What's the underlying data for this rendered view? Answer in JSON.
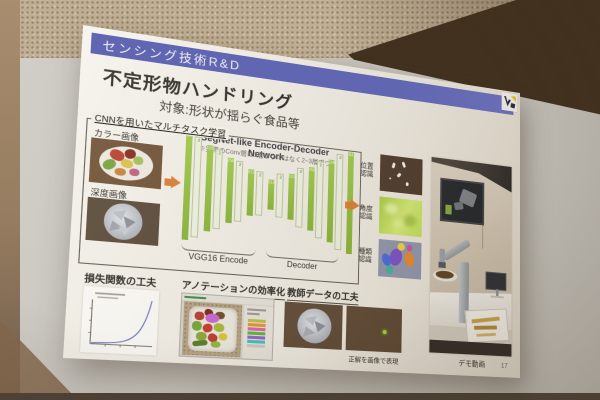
{
  "slide": {
    "title_bar": {
      "title": "センシング技術R&D"
    },
    "heading": "不定形物ハンドリング",
    "subheading": "対象:形状が揺らぐ食品等",
    "cnn_box": {
      "label": "CNNを用いたマルチタスク学習",
      "input_labels": [
        "カラー画像",
        "深度画像"
      ],
      "network": {
        "title": "SegNet-like Encoder-Decoder Network",
        "note": "※実際のConv層は1層ずつではなく2~3層ずつ",
        "encoder_label": "VGG16 Encode",
        "decoder_label": "Decoder",
        "bars": [
          {
            "kind": "conv",
            "label": "64",
            "h": 104
          },
          {
            "kind": "pool",
            "label": "2",
            "h": 96
          },
          {
            "kind": "conv",
            "label": "128",
            "h": 84
          },
          {
            "kind": "pool",
            "label": "2",
            "h": 76
          },
          {
            "kind": "conv",
            "label": "256",
            "h": 64
          },
          {
            "kind": "pool",
            "label": "2",
            "h": 58
          },
          {
            "kind": "conv",
            "label": "512",
            "h": 46
          },
          {
            "kind": "pool",
            "label": "2",
            "h": 42
          },
          {
            "kind": "conv",
            "label": "512",
            "h": 30
          },
          {
            "kind": "pool",
            "label": "2",
            "h": 42
          },
          {
            "kind": "conv",
            "label": "512",
            "h": 46
          },
          {
            "kind": "pool",
            "label": "2",
            "h": 58
          },
          {
            "kind": "conv",
            "label": "256",
            "h": 64
          },
          {
            "kind": "pool",
            "label": "2",
            "h": 76
          },
          {
            "kind": "conv",
            "label": "128",
            "h": 84
          },
          {
            "kind": "pool",
            "label": "2",
            "h": 96
          },
          {
            "kind": "conv",
            "label": "64",
            "h": 104
          }
        ]
      },
      "output_labels": [
        "位置認識",
        "角度認識",
        "種類認識"
      ]
    },
    "sections": {
      "loss_title": "損失関数の工夫",
      "annotation_title": "アノテーションの効率化",
      "teacher_title": "教師データの工夫",
      "teacher_caption": "正解を画像で表現",
      "demo_caption": "デモ動画"
    },
    "page_number": "17"
  },
  "colors": {
    "title_bar_blue": "#4a51a8",
    "conv_green": "#94c23d",
    "pool_light": "#eef2e0",
    "arrow_orange": "#d97b2e",
    "logo_yellow": "#e7c31f"
  }
}
